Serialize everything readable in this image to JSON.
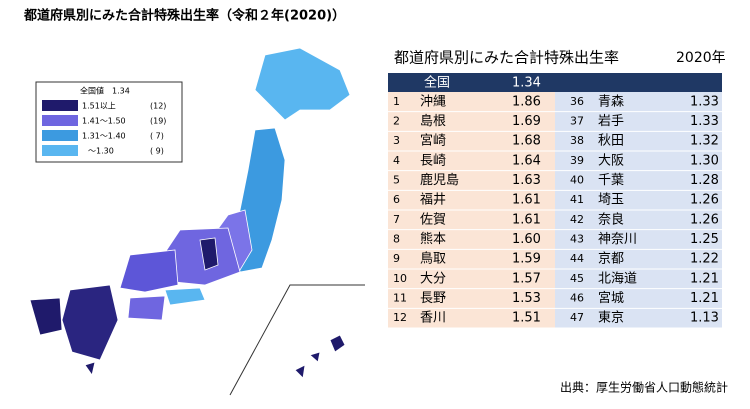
{
  "title": "都道府県別にみた合計特殊出生率（令和２年(2020)）",
  "legend": {
    "national": "全国値　1.34",
    "rows": [
      {
        "label": "1.51以上",
        "count": "(12)"
      },
      {
        "label": "1.41～1.50",
        "count": "(19)"
      },
      {
        "label": "1.31～1.40",
        "count": "( 7)"
      },
      {
        "label": "～1.30",
        "count": "( 9)"
      }
    ]
  },
  "table": {
    "title": "都道府県別にみた合計特殊出生率",
    "year": "2020年",
    "national": {
      "label": "全国",
      "value": "1.34"
    },
    "left": [
      [
        1,
        "沖縄",
        "1.86"
      ],
      [
        2,
        "島根",
        "1.69"
      ],
      [
        3,
        "宮崎",
        "1.68"
      ],
      [
        4,
        "長崎",
        "1.64"
      ],
      [
        5,
        "鹿児島",
        "1.63"
      ],
      [
        6,
        "福井",
        "1.61"
      ],
      [
        7,
        "佐賀",
        "1.61"
      ],
      [
        8,
        "熊本",
        "1.60"
      ],
      [
        9,
        "鳥取",
        "1.59"
      ],
      [
        10,
        "大分",
        "1.57"
      ],
      [
        11,
        "長野",
        "1.53"
      ],
      [
        12,
        "香川",
        "1.51"
      ]
    ],
    "right": [
      [
        36,
        "青森",
        "1.33"
      ],
      [
        37,
        "岩手",
        "1.33"
      ],
      [
        38,
        "秋田",
        "1.32"
      ],
      [
        39,
        "大阪",
        "1.30"
      ],
      [
        40,
        "千葉",
        "1.28"
      ],
      [
        41,
        "埼玉",
        "1.26"
      ],
      [
        42,
        "奈良",
        "1.26"
      ],
      [
        43,
        "神奈川",
        "1.25"
      ],
      [
        44,
        "京都",
        "1.22"
      ],
      [
        45,
        "北海道",
        "1.21"
      ],
      [
        46,
        "宮城",
        "1.21"
      ],
      [
        47,
        "東京",
        "1.13"
      ]
    ]
  },
  "source": "出典：厚生労働省人口動態統計"
}
